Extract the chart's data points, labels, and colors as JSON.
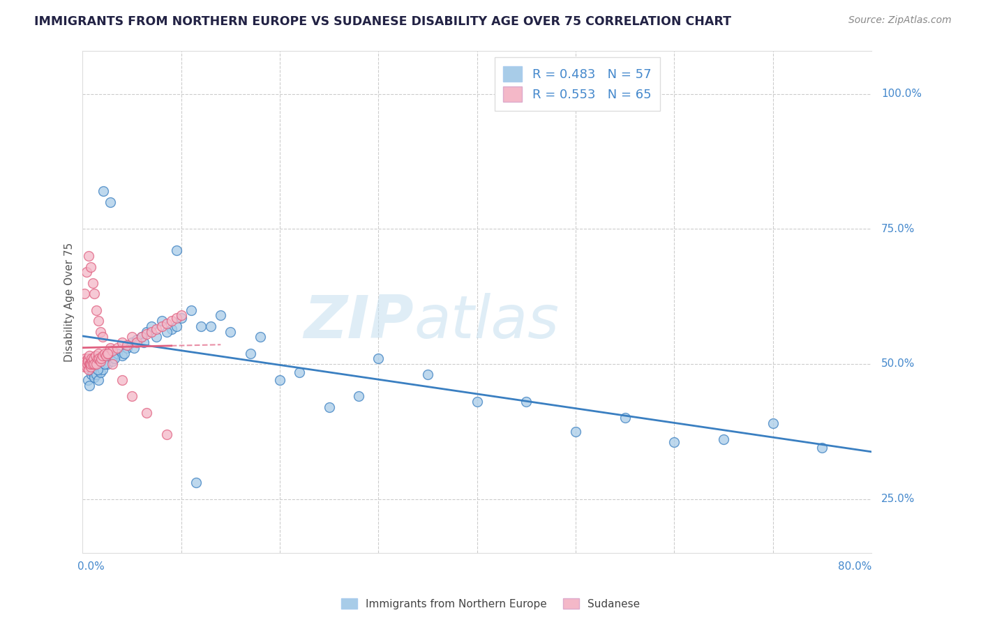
{
  "title": "IMMIGRANTS FROM NORTHERN EUROPE VS SUDANESE DISABILITY AGE OVER 75 CORRELATION CHART",
  "source": "Source: ZipAtlas.com",
  "ylabel": "Disability Age Over 75",
  "legend_label1": "Immigrants from Northern Europe",
  "legend_label2": "Sudanese",
  "r1": 0.483,
  "n1": 57,
  "r2": 0.553,
  "n2": 65,
  "blue_color": "#a8cce8",
  "pink_color": "#f4b8c8",
  "blue_line_color": "#3a7fc1",
  "pink_line_color": "#e06080",
  "axis_label_color": "#4488cc",
  "watermark_zip": "ZIP",
  "watermark_atlas": "atlas",
  "xlim": [
    0.0,
    80.0
  ],
  "ylim": [
    15.0,
    108.0
  ],
  "blue_scatter_x": [
    2.1,
    2.8,
    9.5,
    0.3,
    0.5,
    0.7,
    0.9,
    1.0,
    1.2,
    1.4,
    1.6,
    1.8,
    2.0,
    2.5,
    3.0,
    3.5,
    4.0,
    4.5,
    5.0,
    5.5,
    6.0,
    6.5,
    7.0,
    8.0,
    9.0,
    10.0,
    11.0,
    12.0,
    13.0,
    14.0,
    15.0,
    17.0,
    18.0,
    20.0,
    22.0,
    25.0,
    28.0,
    30.0,
    35.0,
    40.0,
    45.0,
    50.0,
    55.0,
    60.0,
    65.0,
    70.0,
    75.0,
    1.5,
    2.2,
    3.2,
    4.2,
    5.2,
    6.2,
    7.5,
    8.5,
    9.5,
    11.5
  ],
  "blue_scatter_y": [
    82.0,
    80.0,
    71.0,
    50.0,
    47.0,
    46.0,
    48.0,
    48.5,
    47.5,
    48.0,
    47.0,
    48.5,
    49.0,
    50.0,
    50.5,
    52.0,
    51.5,
    53.0,
    54.0,
    54.5,
    55.0,
    56.0,
    57.0,
    58.0,
    56.5,
    58.5,
    60.0,
    57.0,
    57.0,
    59.0,
    56.0,
    52.0,
    55.0,
    47.0,
    48.5,
    42.0,
    44.0,
    51.0,
    48.0,
    43.0,
    43.0,
    37.5,
    40.0,
    35.5,
    36.0,
    39.0,
    34.5,
    49.0,
    50.0,
    51.0,
    52.0,
    53.0,
    54.0,
    55.0,
    56.0,
    57.0,
    28.0
  ],
  "pink_scatter_x": [
    0.05,
    0.1,
    0.15,
    0.2,
    0.25,
    0.3,
    0.35,
    0.4,
    0.45,
    0.5,
    0.55,
    0.6,
    0.65,
    0.7,
    0.75,
    0.8,
    0.85,
    0.9,
    0.95,
    1.0,
    1.1,
    1.2,
    1.3,
    1.4,
    1.5,
    1.6,
    1.7,
    1.8,
    1.9,
    2.0,
    2.2,
    2.4,
    2.6,
    2.8,
    3.0,
    3.5,
    4.0,
    4.5,
    5.0,
    5.5,
    6.0,
    6.5,
    7.0,
    7.5,
    8.0,
    8.5,
    9.0,
    9.5,
    10.0,
    0.2,
    0.4,
    0.6,
    0.8,
    1.0,
    1.2,
    1.4,
    1.6,
    1.8,
    2.0,
    2.5,
    3.0,
    4.0,
    5.0,
    6.5,
    8.5
  ],
  "pink_scatter_y": [
    50.0,
    50.5,
    49.5,
    50.0,
    51.0,
    50.5,
    50.0,
    49.5,
    50.0,
    51.0,
    50.5,
    49.0,
    50.0,
    51.5,
    50.0,
    49.5,
    50.0,
    51.0,
    50.5,
    50.0,
    51.0,
    50.0,
    51.5,
    50.0,
    51.0,
    52.0,
    51.0,
    50.5,
    51.0,
    51.5,
    52.0,
    51.5,
    52.0,
    53.0,
    52.5,
    53.0,
    54.0,
    53.5,
    55.0,
    54.0,
    55.0,
    55.5,
    56.0,
    56.5,
    57.0,
    57.5,
    58.0,
    58.5,
    59.0,
    63.0,
    67.0,
    70.0,
    68.0,
    65.0,
    63.0,
    60.0,
    58.0,
    56.0,
    55.0,
    52.0,
    50.0,
    47.0,
    44.0,
    41.0,
    37.0
  ]
}
